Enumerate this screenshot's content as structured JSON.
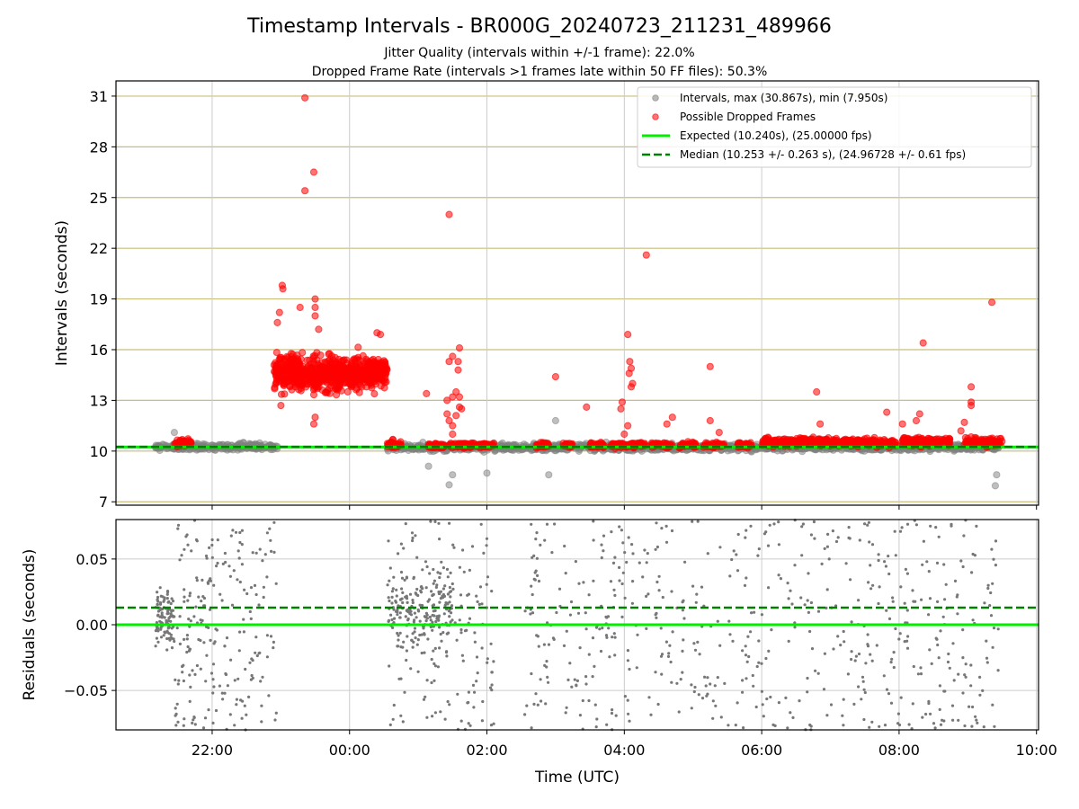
{
  "chart_data": [
    {
      "type": "scatter",
      "title": "Timestamp Intervals - BR000G_20240723_211231_489966",
      "subtitle_lines": [
        "Jitter Quality (intervals within +/-1 frame): 22.0%",
        "Dropped Frame Rate (intervals >1 frames late within 50 FF files): 50.3%"
      ],
      "ylabel": "Intervals (seconds)",
      "xlim_hours": [
        -3.4,
        10.03
      ],
      "ylim": [
        6.8,
        31.9
      ],
      "y_ticks": [
        7,
        10,
        13,
        16,
        19,
        22,
        25,
        28,
        31
      ],
      "y_tick_labels": [
        "7",
        "10",
        "13",
        "16",
        "19",
        "22",
        "25",
        "28",
        "31"
      ],
      "grid": true,
      "legend_position": "upper right",
      "legend": [
        {
          "label": "Intervals, max (30.867s), min (7.950s)",
          "kind": "marker",
          "color": "#808080"
        },
        {
          "label": "Possible Dropped Frames",
          "kind": "marker",
          "color": "#ff0000"
        },
        {
          "label": "Expected (10.240s), (25.00000 fps)",
          "kind": "solid-line",
          "color": "#00ee00"
        },
        {
          "label": "Median (10.253 +/- 0.263 s), (24.96728 +/- 0.61 fps)",
          "kind": "dashed-line",
          "color": "#008000"
        }
      ],
      "reference_lines": {
        "expected": 10.24,
        "median": 10.253
      },
      "series": [
        {
          "name": "Intervals, max (30.867s), min (7.950s)",
          "color": "#808080",
          "baseline_segments": [
            {
              "start": -2.83,
              "end": -1.05,
              "center": 10.25,
              "spread": 0.18
            },
            {
              "start": 0.55,
              "end": 9.45,
              "center": 10.22,
              "spread": 0.2
            }
          ],
          "outliers": [
            [
              -2.55,
              11.1
            ],
            [
              1.15,
              9.1
            ],
            [
              1.45,
              8.0
            ],
            [
              1.5,
              8.6
            ],
            [
              2.0,
              8.7
            ],
            [
              3.0,
              11.8
            ],
            [
              2.9,
              8.6
            ],
            [
              9.4,
              7.95
            ],
            [
              9.42,
              8.6
            ]
          ]
        },
        {
          "name": "Possible Dropped Frames",
          "color": "#ff0000",
          "bands": [
            {
              "start": -2.55,
              "end": -2.3,
              "center": 10.5,
              "spread": 0.25
            },
            {
              "start": -1.1,
              "end": 0.55,
              "center": 14.6,
              "spread": 1.0
            },
            {
              "start": 0.55,
              "end": 0.75,
              "center": 10.4,
              "spread": 0.2
            },
            {
              "start": 1.15,
              "end": 1.4,
              "center": 10.3,
              "spread": 0.15
            },
            {
              "start": 1.45,
              "end": 1.75,
              "center": 10.35,
              "spread": 0.15
            },
            {
              "start": 1.75,
              "end": 2.1,
              "center": 10.35,
              "spread": 0.15
            },
            {
              "start": 2.7,
              "end": 2.9,
              "center": 10.35,
              "spread": 0.15
            },
            {
              "start": 3.1,
              "end": 3.25,
              "center": 10.35,
              "spread": 0.15
            },
            {
              "start": 3.5,
              "end": 3.7,
              "center": 10.35,
              "spread": 0.15
            },
            {
              "start": 3.8,
              "end": 4.3,
              "center": 10.35,
              "spread": 0.15
            },
            {
              "start": 4.4,
              "end": 4.7,
              "center": 10.35,
              "spread": 0.15
            },
            {
              "start": 4.8,
              "end": 5.05,
              "center": 10.35,
              "spread": 0.15
            },
            {
              "start": 5.15,
              "end": 5.45,
              "center": 10.35,
              "spread": 0.15
            },
            {
              "start": 5.65,
              "end": 5.85,
              "center": 10.35,
              "spread": 0.15
            },
            {
              "start": 6.0,
              "end": 6.75,
              "center": 10.55,
              "spread": 0.25
            },
            {
              "start": 6.8,
              "end": 7.95,
              "center": 10.5,
              "spread": 0.25
            },
            {
              "start": 8.05,
              "end": 8.75,
              "center": 10.55,
              "spread": 0.25
            },
            {
              "start": 8.95,
              "end": 9.5,
              "center": 10.55,
              "spread": 0.25
            }
          ],
          "points": [
            [
              -0.65,
              30.9
            ],
            [
              -0.52,
              26.5
            ],
            [
              -0.65,
              25.4
            ],
            [
              -0.98,
              19.8
            ],
            [
              -0.97,
              19.6
            ],
            [
              -0.5,
              19.0
            ],
            [
              -0.5,
              18.5
            ],
            [
              -0.72,
              18.5
            ],
            [
              -0.5,
              18.0
            ],
            [
              -0.45,
              17.2
            ],
            [
              -1.02,
              18.2
            ],
            [
              -1.05,
              17.6
            ],
            [
              0.45,
              16.9
            ],
            [
              0.4,
              17.0
            ],
            [
              -1.0,
              12.7
            ],
            [
              -0.5,
              12.0
            ],
            [
              -0.52,
              11.6
            ],
            [
              1.12,
              13.4
            ],
            [
              1.45,
              24.0
            ],
            [
              1.45,
              15.3
            ],
            [
              1.5,
              15.6
            ],
            [
              1.58,
              15.3
            ],
            [
              1.6,
              16.1
            ],
            [
              1.58,
              14.8
            ],
            [
              1.55,
              13.5
            ],
            [
              1.6,
              13.2
            ],
            [
              1.42,
              13.0
            ],
            [
              1.5,
              13.2
            ],
            [
              1.6,
              12.6
            ],
            [
              1.55,
              12.1
            ],
            [
              1.63,
              12.5
            ],
            [
              1.45,
              11.8
            ],
            [
              1.42,
              12.2
            ],
            [
              1.5,
              11.5
            ],
            [
              1.5,
              11.0
            ],
            [
              3.0,
              14.4
            ],
            [
              3.45,
              12.6
            ],
            [
              3.95,
              12.5
            ],
            [
              3.97,
              12.9
            ],
            [
              4.05,
              16.9
            ],
            [
              4.08,
              15.3
            ],
            [
              4.1,
              14.9
            ],
            [
              4.07,
              14.6
            ],
            [
              4.12,
              14.0
            ],
            [
              4.1,
              13.8
            ],
            [
              4.05,
              11.5
            ],
            [
              4.0,
              11.0
            ],
            [
              4.32,
              21.6
            ],
            [
              4.62,
              11.6
            ],
            [
              4.7,
              12.0
            ],
            [
              5.25,
              15.0
            ],
            [
              5.25,
              11.8
            ],
            [
              5.38,
              11.1
            ],
            [
              6.8,
              13.5
            ],
            [
              6.85,
              11.6
            ],
            [
              7.82,
              12.3
            ],
            [
              8.05,
              11.6
            ],
            [
              8.25,
              11.8
            ],
            [
              8.35,
              16.4
            ],
            [
              8.3,
              12.2
            ],
            [
              9.05,
              13.8
            ],
            [
              9.05,
              12.9
            ],
            [
              9.05,
              12.7
            ],
            [
              9.35,
              18.8
            ],
            [
              8.95,
              11.7
            ],
            [
              8.9,
              11.2
            ]
          ]
        }
      ]
    },
    {
      "type": "scatter",
      "xlabel": "Time (UTC)",
      "ylabel": "Residuals (seconds)",
      "xlim_hours": [
        -3.4,
        10.03
      ],
      "ylim": [
        -0.08,
        0.08
      ],
      "y_ticks": [
        -0.05,
        0.0,
        0.05
      ],
      "y_tick_labels": [
        "−0.05",
        "0.00",
        "0.05"
      ],
      "x_ticks": [
        -2,
        0,
        2,
        4,
        6,
        8,
        10
      ],
      "x_tick_labels": [
        "22:00",
        "00:00",
        "02:00",
        "04:00",
        "06:00",
        "08:00",
        "10:00"
      ],
      "grid": true,
      "reference_lines": {
        "expected": 0.0,
        "median": 0.013
      },
      "series": [
        {
          "name": "Residuals",
          "color": "#808080",
          "clusters": [
            {
              "start": -2.83,
              "end": -2.55,
              "center": 0.005,
              "spread": 0.02,
              "count": 110
            },
            {
              "start": -2.55,
              "end": -1.05,
              "center": 0.0,
              "spread": 0.08,
              "count": 210
            },
            {
              "start": 0.55,
              "end": 1.5,
              "center": 0.01,
              "spread": 0.03,
              "count": 190
            },
            {
              "start": 0.55,
              "end": 2.1,
              "center": 0.0,
              "spread": 0.08,
              "count": 150
            },
            {
              "start": 2.55,
              "end": 9.45,
              "center": 0.0,
              "spread": 0.08,
              "count": 560
            }
          ]
        }
      ]
    }
  ]
}
